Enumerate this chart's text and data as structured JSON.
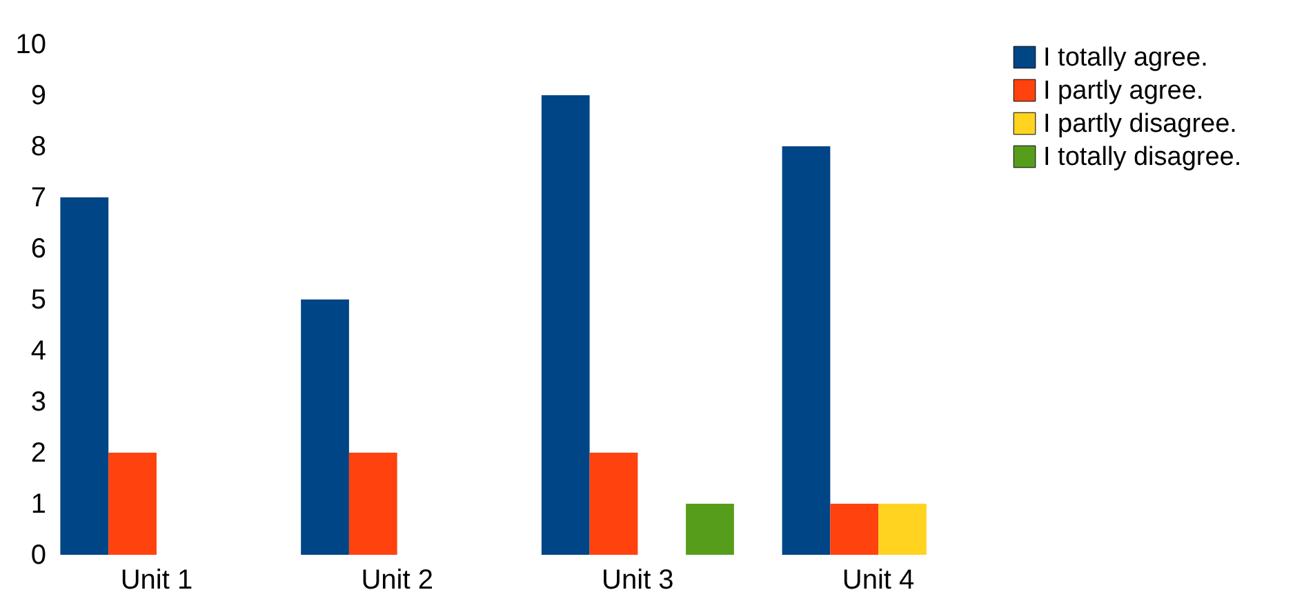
{
  "chart_data": {
    "type": "bar",
    "categories": [
      "Unit 1",
      "Unit 2",
      "Unit 3",
      "Unit 4"
    ],
    "series": [
      {
        "name": "I totally agree.",
        "color": "#004586",
        "values": [
          7,
          5,
          9,
          8
        ]
      },
      {
        "name": "I partly agree.",
        "color": "#ff420e",
        "values": [
          2,
          2,
          2,
          1
        ]
      },
      {
        "name": "I partly disagree.",
        "color": "#ffd320",
        "values": [
          0,
          0,
          0,
          1
        ]
      },
      {
        "name": "I totally disagree.",
        "color": "#579d1c",
        "values": [
          0,
          0,
          1,
          0
        ]
      }
    ],
    "ylim": [
      0,
      10
    ],
    "yticks": [
      0,
      1,
      2,
      3,
      4,
      5,
      6,
      7,
      8,
      9,
      10
    ],
    "grid": false,
    "legend": "right"
  }
}
